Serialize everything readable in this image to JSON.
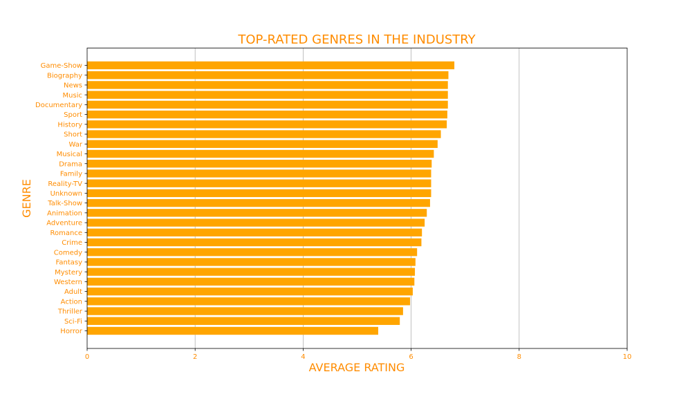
{
  "chart_data": {
    "type": "bar",
    "orientation": "horizontal",
    "title": "TOP-RATED GENRES IN THE INDUSTRY",
    "xlabel": "AVERAGE RATING",
    "ylabel": "GENRE",
    "xlim": [
      0,
      10
    ],
    "xticks": [
      0,
      2,
      4,
      6,
      8,
      10
    ],
    "grid": "x",
    "categories": [
      "Game-Show",
      "Biography",
      "News",
      "Music",
      "Documentary",
      "Sport",
      "History",
      "Short",
      "War",
      "Musical",
      "Drama",
      "Family",
      "Reality-TV",
      "Unknown",
      "Talk-Show",
      "Animation",
      "Adventure",
      "Romance",
      "Crime",
      "Comedy",
      "Fantasy",
      "Mystery",
      "Western",
      "Adult",
      "Action",
      "Thriller",
      "Sci-Fi",
      "Horror"
    ],
    "values": [
      6.8,
      6.69,
      6.68,
      6.68,
      6.68,
      6.67,
      6.66,
      6.55,
      6.49,
      6.42,
      6.38,
      6.37,
      6.37,
      6.37,
      6.35,
      6.29,
      6.25,
      6.2,
      6.19,
      6.11,
      6.08,
      6.07,
      6.06,
      6.03,
      5.98,
      5.85,
      5.79,
      5.39
    ],
    "colors": {
      "bar": "#ffa500",
      "text": "#ff8c00",
      "grid": "#b0b0b0",
      "axis": "#000000"
    }
  }
}
